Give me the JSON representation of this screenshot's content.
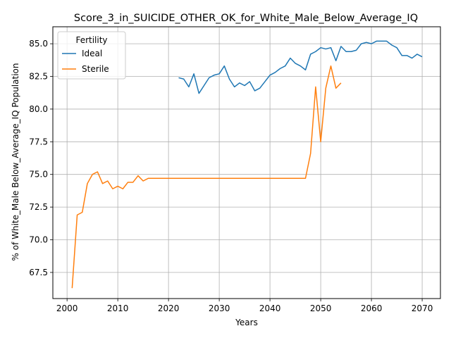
{
  "chart_data": {
    "type": "line",
    "title": "Score_3_in_SUICIDE_OTHER_OK_for_White_Male_Below_Average_IQ",
    "xlabel": "Years",
    "ylabel": "% of White_Male Below_Average_IQ Population",
    "xlim": [
      1997.2,
      2073.6
    ],
    "ylim": [
      65.5,
      86.3
    ],
    "xticks": [
      2000,
      2010,
      2020,
      2030,
      2040,
      2050,
      2060,
      2070
    ],
    "xtick_labels": [
      "2000",
      "2010",
      "2020",
      "2030",
      "2040",
      "2050",
      "2060",
      "2070"
    ],
    "yticks": [
      67.5,
      70.0,
      72.5,
      75.0,
      77.5,
      80.0,
      82.5,
      85.0
    ],
    "ytick_labels": [
      "67.5",
      "70.0",
      "72.5",
      "75.0",
      "77.5",
      "80.0",
      "82.5",
      "85.0"
    ],
    "grid": true,
    "legend": {
      "title": "Fertility",
      "placement": "top-left"
    },
    "series": [
      {
        "name": "Ideal",
        "color": "#1f77b4",
        "x": [
          2022,
          2023,
          2024,
          2025,
          2026,
          2027,
          2028,
          2029,
          2030,
          2031,
          2032,
          2033,
          2034,
          2035,
          2036,
          2037,
          2038,
          2039,
          2040,
          2041,
          2042,
          2043,
          2044,
          2045,
          2046,
          2047,
          2048,
          2049,
          2050,
          2051,
          2052,
          2053,
          2054,
          2055,
          2056,
          2057,
          2058,
          2059,
          2060,
          2061,
          2062,
          2063,
          2064,
          2065,
          2066,
          2067,
          2068,
          2069,
          2070
        ],
        "y": [
          82.4,
          82.3,
          81.7,
          82.7,
          81.2,
          81.8,
          82.4,
          82.6,
          82.7,
          83.3,
          82.3,
          81.7,
          82.0,
          81.8,
          82.1,
          81.4,
          81.6,
          82.1,
          82.6,
          82.8,
          83.1,
          83.3,
          83.9,
          83.5,
          83.3,
          83.0,
          84.2,
          84.4,
          84.7,
          84.6,
          84.7,
          83.7,
          84.8,
          84.4,
          84.4,
          84.5,
          85.0,
          85.1,
          85.0,
          85.2,
          85.2,
          85.2,
          84.9,
          84.7,
          84.1,
          84.1,
          83.9,
          84.2,
          84.0
        ]
      },
      {
        "name": "Sterile",
        "color": "#ff7f0e",
        "x": [
          2001,
          2002,
          2003,
          2004,
          2005,
          2006,
          2007,
          2008,
          2009,
          2010,
          2011,
          2012,
          2013,
          2014,
          2015,
          2016,
          2017,
          2018,
          2019,
          2020,
          2021,
          2022,
          2023,
          2024,
          2025,
          2026,
          2027,
          2028,
          2029,
          2030,
          2031,
          2032,
          2033,
          2034,
          2035,
          2036,
          2037,
          2038,
          2039,
          2040,
          2041,
          2042,
          2043,
          2044,
          2045,
          2046,
          2047,
          2048,
          2049,
          2050,
          2051,
          2052,
          2053,
          2054
        ],
        "y": [
          66.3,
          71.9,
          72.1,
          74.3,
          75.0,
          75.2,
          74.3,
          74.5,
          73.9,
          74.1,
          73.9,
          74.4,
          74.4,
          74.9,
          74.5,
          74.7,
          74.7,
          74.7,
          74.7,
          74.7,
          74.7,
          74.7,
          74.7,
          74.7,
          74.7,
          74.7,
          74.7,
          74.7,
          74.7,
          74.7,
          74.7,
          74.7,
          74.7,
          74.7,
          74.7,
          74.7,
          74.7,
          74.7,
          74.7,
          74.7,
          74.7,
          74.7,
          74.7,
          74.7,
          74.7,
          74.7,
          74.7,
          76.6,
          81.7,
          77.5,
          81.6,
          83.3,
          81.6,
          82.0
        ]
      }
    ]
  }
}
